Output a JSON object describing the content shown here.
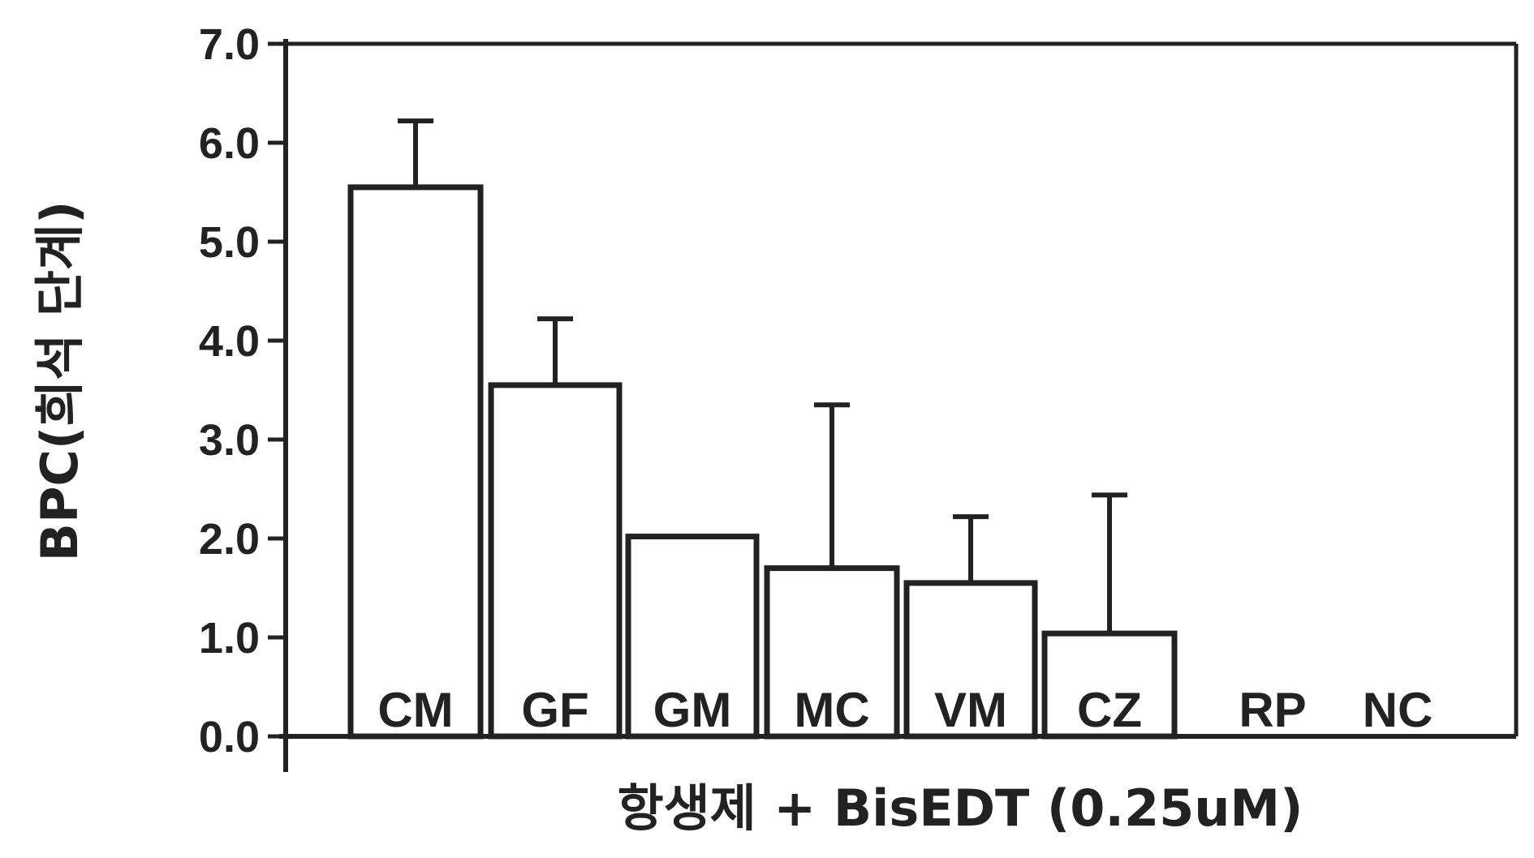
{
  "chart_data": {
    "type": "bar",
    "categories": [
      "CM",
      "GF",
      "GM",
      "MC",
      "VM",
      "CZ",
      "RP",
      "NC"
    ],
    "values": [
      5.55,
      3.55,
      2.02,
      1.7,
      1.55,
      1.04,
      0.0,
      0.0
    ],
    "error_upper": [
      6.22,
      4.22,
      2.02,
      3.35,
      2.22,
      2.44,
      0.0,
      0.0
    ],
    "ylim": [
      0,
      7
    ],
    "yticks": [
      "0.0",
      "1.0",
      "2.0",
      "3.0",
      "4.0",
      "5.0",
      "6.0",
      "7.0"
    ],
    "ylabel": "BPC(희석 단계)",
    "xlabel": "항생제 + BisEDT (0.25uM)",
    "grid": false,
    "colors": {
      "bar_fill": "#ffffff",
      "stroke": "#222222"
    }
  }
}
